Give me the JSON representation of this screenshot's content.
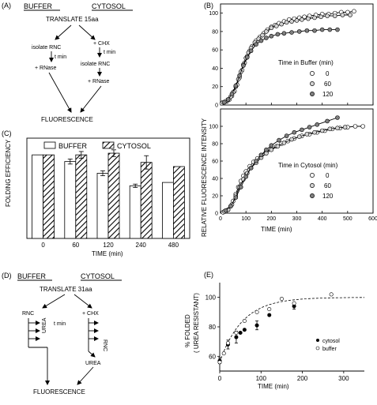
{
  "panelA": {
    "label": "(A)",
    "buffer": "BUFFER",
    "cytosol": "CYTOSOL",
    "translate": "TRANSLATE 15aa",
    "isolate_rnc": "isolate RNC",
    "t_min": "t min",
    "plus_rnase": "+ RNase",
    "plus_chx": "+ CHX",
    "t_min_2": "t min",
    "isolate_rnc_2": "isolate RNC",
    "plus_rnase_2": "+ RNase",
    "fluorescence": "FLUORESCENCE"
  },
  "panelB": {
    "label": "(B)",
    "ylabel": "RELATIVE FLUORESCENCE INTENSITY",
    "xlabel": "TIME (min)",
    "legend_top_title": "Time in Buffer (min)",
    "legend_bottom_title": "Time in Cytosol (min)",
    "legend_items": [
      "0",
      "60",
      "120"
    ],
    "legend_items_b": [
      "0",
      "60",
      "120"
    ]
  },
  "panelC": {
    "label": "(C)",
    "ylabel": "FOLDING EFFICIENCY",
    "xlabel": "TIME (min)",
    "legend_buffer": "BUFFER",
    "legend_cytosol": "CYTOSOL"
  },
  "panelD": {
    "label": "(D)",
    "buffer": "BUFFER",
    "cytosol": "CYTOSOL",
    "translate": "TRANSLATE 31aa",
    "rnc": "RNC",
    "plus_chx": "+ CHX",
    "t_min": "t min",
    "urea": "UREA",
    "rnc_2": "RNC",
    "urea_2": "UREA",
    "fluorescence": "FLUORESCENCE"
  },
  "panelE": {
    "label": "(E)",
    "ylabel_1": "% FOLDED",
    "ylabel_2": "( UREA RESISTANT)",
    "xlabel": "TIME (min)",
    "legend_cytosol": "cytosol",
    "legend_buffer": "buffer"
  },
  "chart_data": [
    {
      "id": "B-top",
      "type": "scatter",
      "title": "",
      "xlabel": "TIME (min)",
      "ylabel": "RELATIVE FLUORESCENCE INTENSITY",
      "xlim": [
        0,
        600
      ],
      "ylim": [
        0,
        110
      ],
      "yticks": [
        0,
        20,
        40,
        60,
        80,
        100
      ],
      "legend_title": "Time in Buffer (min)",
      "series": [
        {
          "name": "0",
          "marker": "open",
          "x": [
            5,
            15,
            25,
            35,
            45,
            55,
            65,
            75,
            85,
            95,
            105,
            115,
            125,
            140,
            155,
            170,
            185,
            200,
            215,
            230,
            250,
            270,
            290,
            310,
            330,
            350,
            375,
            400,
            425,
            450,
            475,
            500,
            525
          ],
          "y": [
            2,
            3,
            4,
            6,
            10,
            15,
            22,
            30,
            38,
            46,
            53,
            59,
            64,
            70,
            74,
            78,
            82,
            85,
            87,
            89,
            91,
            93,
            94,
            95,
            96,
            97,
            98,
            99,
            99,
            100,
            101,
            101,
            102
          ]
        },
        {
          "name": "60",
          "marker": "light-grey",
          "x": [
            10,
            20,
            30,
            40,
            50,
            60,
            70,
            80,
            90,
            100,
            110,
            120,
            135,
            150,
            165,
            180,
            200,
            220,
            240,
            260,
            280,
            300,
            320,
            345,
            370,
            395,
            420,
            450,
            480,
            510
          ],
          "y": [
            3,
            4,
            6,
            9,
            14,
            20,
            28,
            36,
            44,
            51,
            57,
            62,
            68,
            72,
            76,
            80,
            84,
            86,
            88,
            90,
            91,
            92,
            93,
            94,
            95,
            96,
            97,
            97,
            98,
            98
          ]
        },
        {
          "name": "120",
          "marker": "dark-grey",
          "x": [
            15,
            30,
            45,
            60,
            75,
            90,
            105,
            120,
            140,
            160,
            180,
            200,
            225,
            250,
            280,
            310,
            340,
            370,
            400,
            430,
            460
          ],
          "y": [
            3,
            6,
            12,
            21,
            32,
            43,
            52,
            59,
            66,
            70,
            73,
            75,
            77,
            78,
            79,
            80,
            81,
            81,
            82,
            82,
            82
          ]
        }
      ]
    },
    {
      "id": "B-bottom",
      "type": "scatter",
      "title": "",
      "xlabel": "TIME (min)",
      "ylabel": "RELATIVE FLUORESCENCE INTENSITY",
      "xlim": [
        0,
        600
      ],
      "ylim": [
        0,
        120
      ],
      "xticks": [
        0,
        100,
        200,
        300,
        400,
        500,
        600
      ],
      "legend_title": "Time in Cytosol (min)",
      "series": [
        {
          "name": "0",
          "marker": "open",
          "x": [
            10,
            20,
            30,
            40,
            50,
            60,
            70,
            80,
            90,
            100,
            115,
            130,
            145,
            160,
            180,
            200,
            220,
            240,
            265,
            290,
            320,
            350,
            380,
            410,
            440,
            470,
            500,
            530,
            560
          ],
          "y": [
            1,
            2,
            4,
            8,
            14,
            22,
            30,
            37,
            43,
            48,
            54,
            59,
            63,
            67,
            71,
            74,
            77,
            80,
            83,
            86,
            89,
            91,
            93,
            95,
            97,
            98,
            99,
            100,
            100
          ]
        },
        {
          "name": "60",
          "marker": "light-grey",
          "x": [
            15,
            30,
            45,
            60,
            75,
            90,
            105,
            120,
            140,
            160,
            180,
            200,
            225,
            250,
            280,
            310,
            340,
            370,
            400,
            430,
            460,
            490
          ],
          "y": [
            2,
            4,
            10,
            20,
            30,
            39,
            46,
            52,
            58,
            64,
            69,
            73,
            77,
            81,
            85,
            88,
            91,
            93,
            95,
            97,
            98,
            99
          ]
        },
        {
          "name": "120",
          "marker": "dark-grey",
          "x": [
            20,
            40,
            60,
            80,
            100,
            120,
            140,
            160,
            180,
            200,
            230,
            260,
            290,
            320,
            350,
            380,
            420,
            460
          ],
          "y": [
            3,
            8,
            18,
            30,
            42,
            52,
            60,
            67,
            73,
            78,
            84,
            89,
            93,
            96,
            99,
            102,
            106,
            110
          ]
        }
      ]
    },
    {
      "id": "C",
      "type": "bar",
      "title": "",
      "xlabel": "TIME (min)",
      "ylabel": "FOLDING EFFICIENCY",
      "categories": [
        "0",
        "60",
        "120",
        "240",
        "480"
      ],
      "ylim": [
        0,
        120
      ],
      "series": [
        {
          "name": "BUFFER",
          "values": [
            100,
            92,
            78,
            63,
            67
          ],
          "errors": [
            0,
            3,
            3,
            2,
            0
          ]
        },
        {
          "name": "CYTOSOL",
          "values": [
            100,
            100,
            102,
            91,
            86
          ],
          "errors": [
            0,
            4,
            4,
            8,
            0
          ]
        }
      ]
    },
    {
      "id": "E",
      "type": "scatter",
      "title": "",
      "xlabel": "TIME (min)",
      "ylabel": "% FOLDED ( UREA RESISTANT)",
      "xlim": [
        0,
        350
      ],
      "ylim": [
        50,
        110
      ],
      "xticks": [
        0,
        100,
        200,
        300
      ],
      "yticks": [
        60,
        80,
        100
      ],
      "series": [
        {
          "name": "cytosol",
          "marker": "filled",
          "x": [
            0,
            20,
            40,
            50,
            60,
            90,
            120,
            180
          ],
          "y": [
            57,
            68,
            73,
            76,
            78,
            81,
            88,
            94
          ],
          "errors": [
            2,
            3,
            4,
            0,
            0,
            3,
            0,
            2
          ]
        },
        {
          "name": "buffer",
          "marker": "open",
          "x": [
            0,
            10,
            20,
            40,
            60,
            90,
            120,
            150,
            180,
            270
          ],
          "y": [
            56,
            62,
            69,
            76,
            84,
            90,
            92,
            99,
            96,
            102
          ]
        }
      ],
      "fit": "dashed"
    }
  ]
}
